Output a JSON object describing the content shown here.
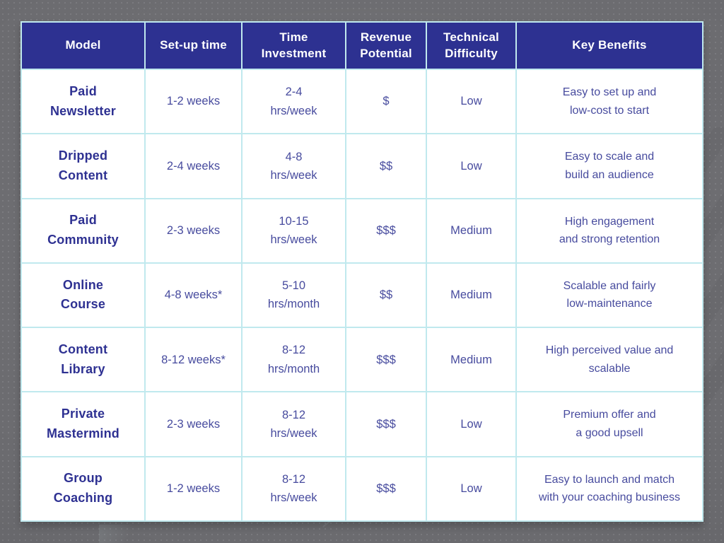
{
  "colors": {
    "header_background": "#2d3191",
    "header_text": "#ffffff",
    "model_text": "#2e3192",
    "body_text": "#474b9e",
    "cell_border": "#c0e9ee",
    "cell_background": "#ffffff",
    "page_background": "#6b6b6f"
  },
  "table": {
    "headers": [
      [
        "Model"
      ],
      [
        "Set-up time"
      ],
      [
        "Time",
        "Investment"
      ],
      [
        "Revenue",
        "Potential"
      ],
      [
        "Technical",
        "Difficulty"
      ],
      [
        "Key Benefits"
      ]
    ],
    "rows": [
      {
        "model": [
          "Paid",
          "Newsletter"
        ],
        "setup": "1-2 weeks",
        "time": [
          "2-4",
          "hrs/week"
        ],
        "revenue": "$",
        "difficulty": "Low",
        "benefits": [
          "Easy to set up and",
          "low-cost to start"
        ]
      },
      {
        "model": [
          "Dripped",
          "Content"
        ],
        "setup": "2-4 weeks",
        "time": [
          "4-8",
          "hrs/week"
        ],
        "revenue": "$$",
        "difficulty": "Low",
        "benefits": [
          "Easy to scale and",
          "build an audience"
        ]
      },
      {
        "model": [
          "Paid",
          "Community"
        ],
        "setup": "2-3 weeks",
        "time": [
          "10-15",
          "hrs/week"
        ],
        "revenue": "$$$",
        "difficulty": "Medium",
        "benefits": [
          "High engagement",
          "and strong retention"
        ]
      },
      {
        "model": [
          "Online",
          "Course"
        ],
        "setup": "4-8 weeks*",
        "time": [
          "5-10",
          "hrs/month"
        ],
        "revenue": "$$",
        "difficulty": "Medium",
        "benefits": [
          "Scalable and fairly",
          "low-maintenance"
        ]
      },
      {
        "model": [
          "Content",
          "Library"
        ],
        "setup": "8-12 weeks*",
        "time": [
          "8-12",
          "hrs/month"
        ],
        "revenue": "$$$",
        "difficulty": "Medium",
        "benefits": [
          "High perceived value and",
          "scalable"
        ]
      },
      {
        "model": [
          "Private",
          "Mastermind"
        ],
        "setup": "2-3 weeks",
        "time": [
          "8-12",
          "hrs/week"
        ],
        "revenue": "$$$",
        "difficulty": "Low",
        "benefits": [
          "Premium offer and",
          "a good upsell"
        ]
      },
      {
        "model": [
          "Group",
          "Coaching"
        ],
        "setup": "1-2 weeks",
        "time": [
          "8-12",
          "hrs/week"
        ],
        "revenue": "$$$",
        "difficulty": "Low",
        "benefits": [
          "Easy to launch and match",
          "with your coaching business"
        ]
      }
    ]
  }
}
